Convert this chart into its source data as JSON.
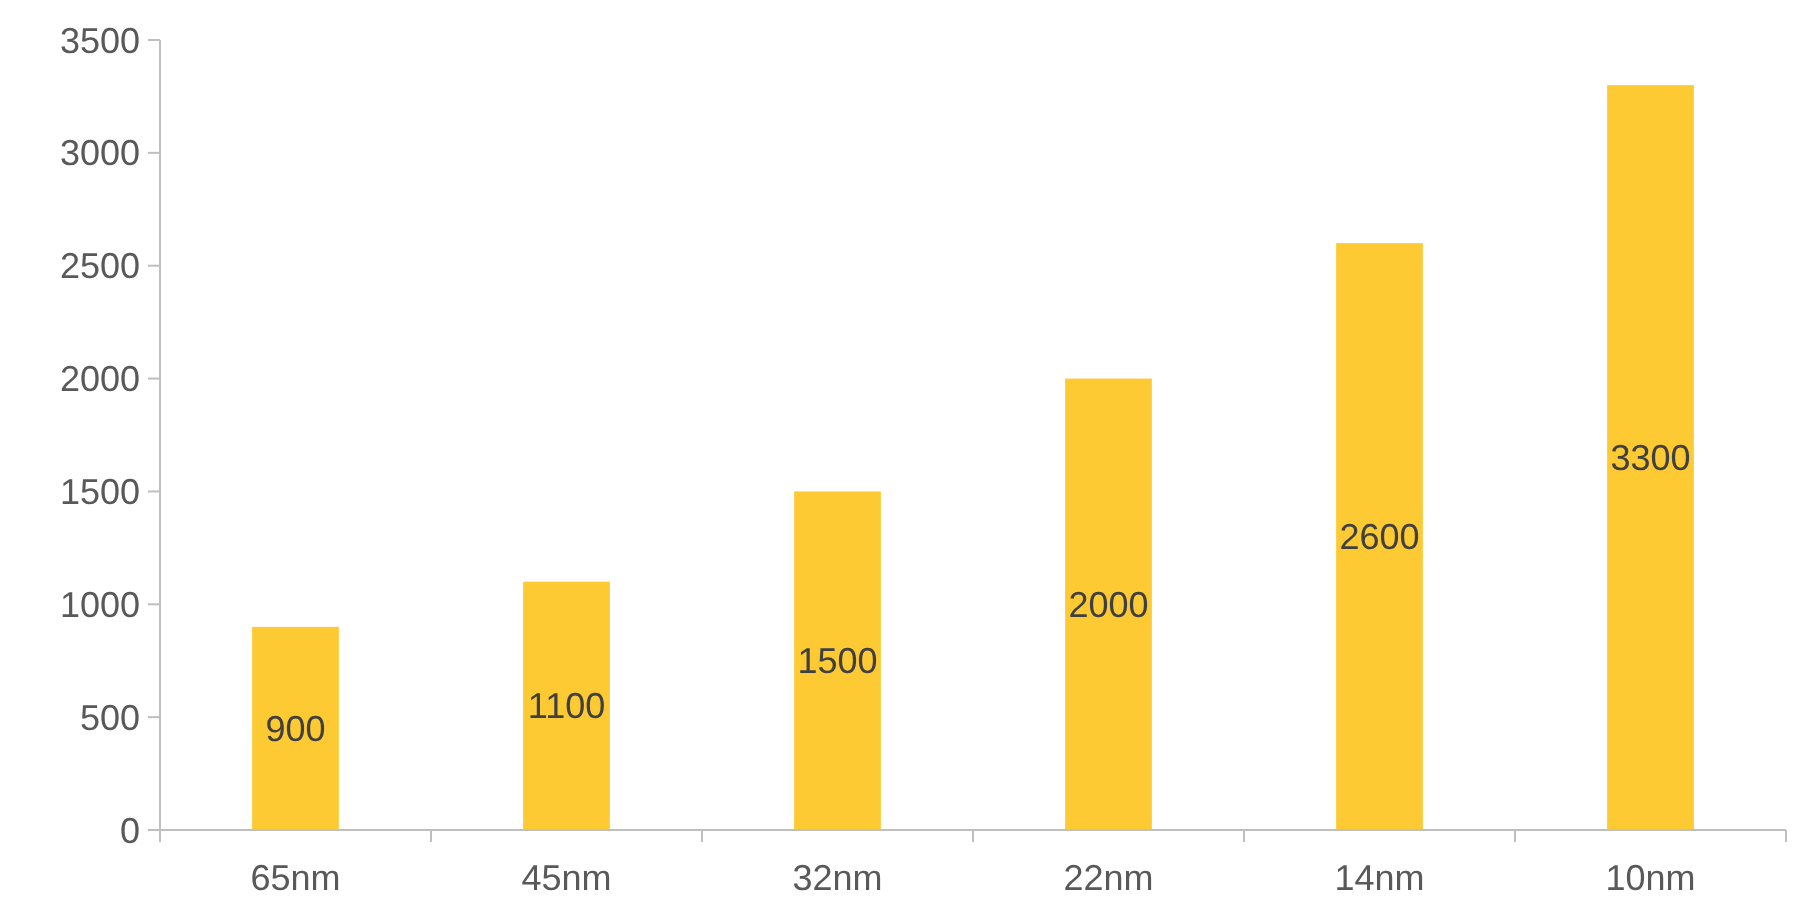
{
  "chart_data": {
    "type": "bar",
    "categories": [
      "65nm",
      "45nm",
      "32nm",
      "22nm",
      "14nm",
      "10nm"
    ],
    "values": [
      900,
      1100,
      1500,
      2000,
      2600,
      3300
    ],
    "color": "#fdca34",
    "ylim": [
      0,
      3500
    ],
    "yticks": [
      0,
      500,
      1000,
      1500,
      2000,
      2500,
      3000,
      3500
    ],
    "grid": false,
    "data_labels": true
  }
}
